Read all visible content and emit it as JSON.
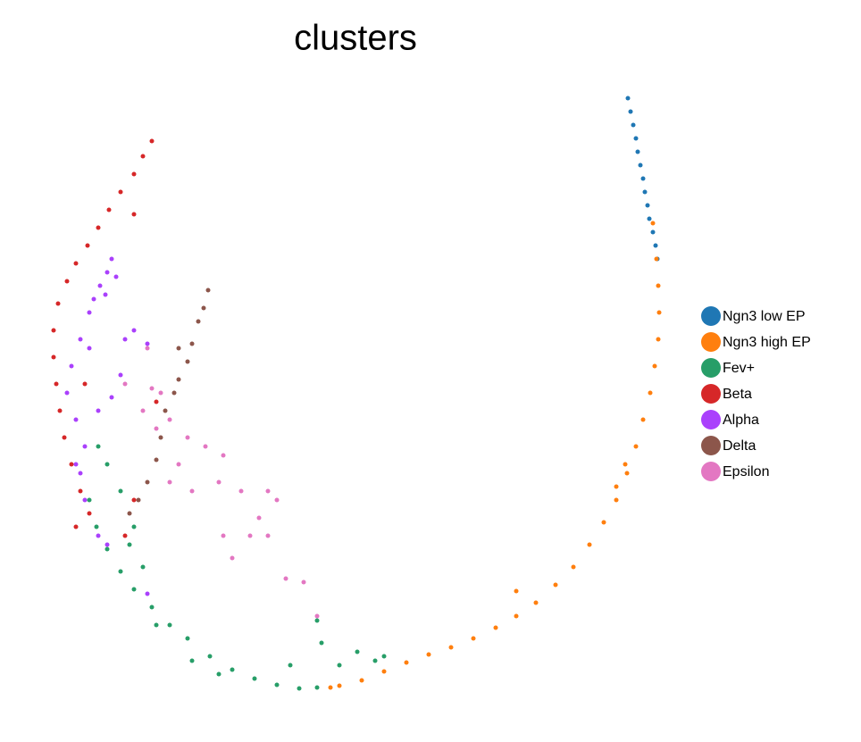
{
  "chart_data": {
    "type": "scatter",
    "title": "clusters",
    "xlim": [
      0,
      700
    ],
    "ylim": [
      0,
      700
    ],
    "series": [
      {
        "name": "Ngn3 low EP",
        "color": "#1f77b4",
        "x": [
          653,
          656,
          659,
          662,
          664,
          667,
          670,
          672,
          675,
          677,
          681,
          684,
          686
        ],
        "y": [
          670,
          655,
          640,
          625,
          610,
          595,
          580,
          565,
          550,
          535,
          520,
          505,
          490
        ]
      },
      {
        "name": "Ngn3 high EP",
        "color": "#ff7f0e",
        "x": [
          681,
          685,
          687,
          688,
          687,
          683,
          678,
          670,
          662,
          652,
          640,
          626,
          610,
          592,
          572,
          550,
          528,
          505,
          480,
          455,
          430,
          405,
          380,
          355,
          330,
          320,
          528,
          650,
          640
        ],
        "y": [
          530,
          490,
          460,
          430,
          400,
          370,
          340,
          310,
          280,
          250,
          220,
          195,
          170,
          145,
          125,
          105,
          90,
          77,
          65,
          55,
          47,
          38,
          28,
          18,
          12,
          10,
          118,
          260,
          235
        ]
      },
      {
        "name": "Fev+",
        "color": "#279e68",
        "x": [
          50,
          58,
          70,
          85,
          100,
          120,
          140,
          160,
          185,
          210,
          235,
          260,
          285,
          305,
          70,
          85,
          100,
          110,
          125,
          165,
          195,
          350,
          370,
          330,
          380,
          275,
          310,
          305,
          60,
          95
        ],
        "y": [
          220,
          190,
          165,
          140,
          120,
          100,
          80,
          65,
          45,
          30,
          20,
          13,
          9,
          10,
          260,
          230,
          190,
          145,
          80,
          40,
          25,
          50,
          40,
          35,
          45,
          35,
          60,
          85,
          280,
          170
        ]
      },
      {
        "name": "Beta",
        "color": "#d62728",
        "x": [
          120,
          110,
          100,
          85,
          72,
          60,
          48,
          35,
          25,
          15,
          10,
          10,
          13,
          17,
          22,
          30,
          40,
          50,
          35,
          90,
          100,
          45,
          100,
          125
        ],
        "y": [
          622,
          605,
          585,
          565,
          545,
          525,
          505,
          485,
          465,
          440,
          410,
          380,
          350,
          320,
          290,
          260,
          230,
          205,
          190,
          180,
          540,
          350,
          220,
          330
        ]
      },
      {
        "name": "Alpha",
        "color": "#aa40fc",
        "x": [
          75,
          70,
          62,
          55,
          68,
          50,
          80,
          40,
          30,
          25,
          35,
          45,
          40,
          45,
          60,
          70,
          100,
          115,
          85,
          60,
          50,
          90,
          115,
          75,
          35
        ],
        "y": [
          490,
          475,
          460,
          445,
          450,
          430,
          470,
          400,
          370,
          340,
          310,
          280,
          250,
          220,
          180,
          170,
          410,
          395,
          360,
          320,
          390,
          400,
          115,
          335,
          260
        ]
      },
      {
        "name": "Delta",
        "color": "#8c564b",
        "x": [
          183,
          178,
          172,
          165,
          160,
          150,
          145,
          130,
          125,
          115,
          105,
          95,
          150,
          135
        ],
        "y": [
          455,
          435,
          420,
          395,
          375,
          355,
          340,
          290,
          265,
          240,
          220,
          205,
          390,
          320
        ]
      },
      {
        "name": "Epsilon",
        "color": "#e377c2",
        "x": [
          115,
          120,
          130,
          110,
          140,
          160,
          180,
          200,
          195,
          220,
          250,
          260,
          240,
          250,
          210,
          200,
          270,
          290,
          305,
          150,
          165,
          125,
          90,
          140,
          230
        ],
        "y": [
          390,
          345,
          340,
          320,
          310,
          290,
          280,
          270,
          240,
          230,
          230,
          220,
          200,
          180,
          155,
          180,
          132,
          128,
          90,
          260,
          230,
          300,
          350,
          240,
          180
        ]
      }
    ]
  }
}
